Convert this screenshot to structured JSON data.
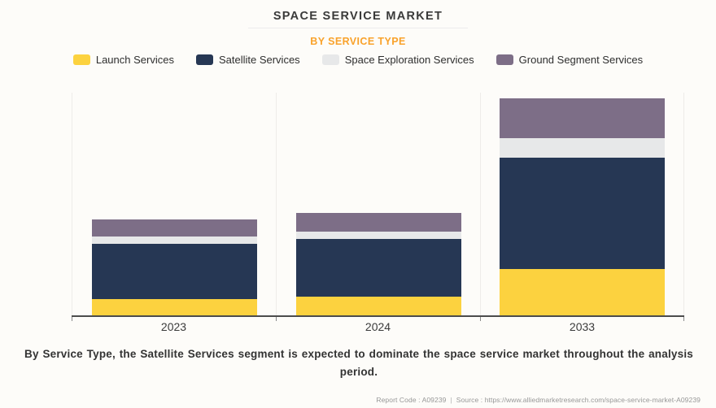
{
  "page": {
    "background": "#fdfcf9"
  },
  "header": {
    "title": "SPACE SERVICE MARKET",
    "title_color": "#3a3a3a",
    "subtitle": "BY SERVICE TYPE",
    "subtitle_color": "#f9a22b"
  },
  "legend": {
    "position": "top",
    "items": [
      {
        "label": "Launch Services",
        "color": "#fcd23f"
      },
      {
        "label": "Satellite Services",
        "color": "#263754"
      },
      {
        "label": "Space Exploration Services",
        "color": "#e7e8e9"
      },
      {
        "label": "Ground Segment Services",
        "color": "#7d6e87"
      }
    ]
  },
  "chart_data": {
    "type": "bar",
    "stacked": true,
    "title": "SPACE SERVICE MARKET",
    "subtitle": "BY SERVICE TYPE",
    "categories": [
      "2023",
      "2024",
      "2033"
    ],
    "series": [
      {
        "name": "Launch Services",
        "color": "#fcd23f",
        "values": [
          20,
          23,
          57
        ]
      },
      {
        "name": "Satellite Services",
        "color": "#263754",
        "values": [
          68,
          71,
          137
        ]
      },
      {
        "name": "Space Exploration Services",
        "color": "#e7e8e9",
        "values": [
          9,
          9,
          24
        ]
      },
      {
        "name": "Ground Segment Services",
        "color": "#7d6e87",
        "values": [
          21,
          23,
          49
        ]
      }
    ],
    "stack_totals": [
      118,
      126,
      267
    ],
    "value_unit": "relative height (no numeric y-axis shown; values are rendered pixel heights)",
    "y_axis": {
      "visible": false,
      "ylim": [
        0,
        276
      ]
    },
    "x_axis": {
      "visible": true,
      "tick_labels": [
        "2023",
        "2024",
        "2033"
      ],
      "axis_color": "#4c4c4c"
    },
    "grid": "vertical category separators only",
    "legend_position": "top"
  },
  "summary": {
    "text": "By Service Type, the Satellite Services segment is expected to dominate the space service market throughout the analysis period."
  },
  "footer": {
    "report_code": "Report Code : A09239",
    "separator": "|",
    "source": "Source : https://www.alliedmarketresearch.com/space-service-market-A09239"
  }
}
